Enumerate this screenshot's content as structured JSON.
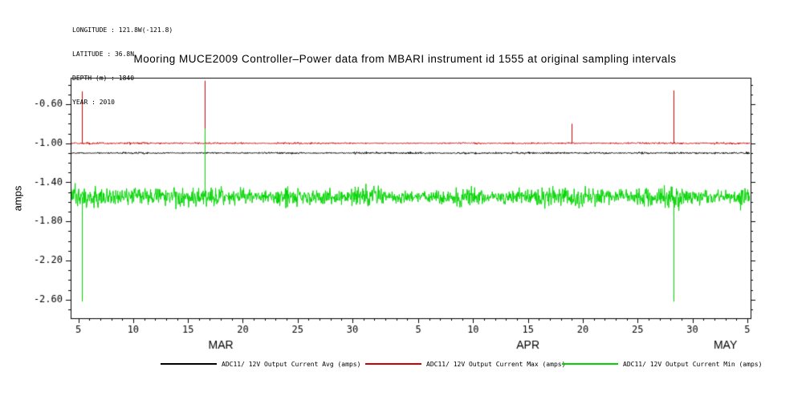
{
  "metadata_block": {
    "lines": [
      "LONGITUDE : 121.8W(-121.8)",
      "LATITUDE : 36.8N",
      "DEPTH (m) : 1840",
      "YEAR : 2010"
    ]
  },
  "title": "Mooring MUCE2009 Controller–Power data from MBARI instrument id 1555 at original sampling intervals",
  "ylabel": "amps",
  "legend": [
    {
      "label": "ADC11/ 12V Output Current Avg (amps)",
      "color": "#000000"
    },
    {
      "label": "ADC11/ 12V Output Current Max (amps)",
      "color": "#cc0000"
    },
    {
      "label": "ADC11/ 12V Output Current Min (amps)",
      "color": "#00d400"
    }
  ],
  "chart_data": {
    "type": "line",
    "title": "Mooring MUCE2009 Controller–Power data from MBARI instrument id 1555 at original sampling intervals",
    "xlabel": "",
    "ylabel": "amps",
    "x_unit": "days from Mar 1, 2010",
    "x_domain": [
      4.3,
      66.3
    ],
    "x_start": 4.35,
    "x_end": 66.3,
    "ylim": [
      -2.79,
      -0.33
    ],
    "grid": false,
    "legend_position": "bottom",
    "y_ticks": [
      -0.6,
      -1.0,
      -1.4,
      -1.8,
      -2.2,
      -2.6
    ],
    "y_tick_labels": [
      "-0.60",
      "-1.00",
      "-1.40",
      "-1.80",
      "-2.20",
      "-2.60"
    ],
    "x_ticks": [
      {
        "day": 5,
        "label": "5"
      },
      {
        "day": 10,
        "label": "10"
      },
      {
        "day": 15,
        "label": "15"
      },
      {
        "day": 20,
        "label": "20"
      },
      {
        "day": 25,
        "label": "25"
      },
      {
        "day": 30,
        "label": "30"
      },
      {
        "day": 36,
        "label": "5"
      },
      {
        "day": 41,
        "label": "10"
      },
      {
        "day": 46,
        "label": "15"
      },
      {
        "day": 51,
        "label": "20"
      },
      {
        "day": 56,
        "label": "25"
      },
      {
        "day": 61,
        "label": "30"
      },
      {
        "day": 66,
        "label": "5"
      }
    ],
    "month_labels": [
      {
        "day": 18,
        "label": "MAR"
      },
      {
        "day": 46,
        "label": "APR"
      },
      {
        "day": 64,
        "label": "MAY"
      }
    ],
    "series": [
      {
        "name": "ADC11/ 12V Output Current Avg (amps)",
        "color": "#000000",
        "baseline": -1.1,
        "noise_amplitude": 0.012,
        "spikes": []
      },
      {
        "name": "ADC11/ 12V Output Current Max (amps)",
        "color": "#cc0000",
        "baseline": -1.0,
        "noise_amplitude": 0.012,
        "spikes": [
          {
            "day": 5.3,
            "value": -0.47
          },
          {
            "day": 16.5,
            "value": -0.36
          },
          {
            "day": 50.0,
            "value": -0.8
          },
          {
            "day": 59.3,
            "value": -0.46
          }
        ]
      },
      {
        "name": "ADC11/ 12V Output Current Min (amps)",
        "color": "#00d400",
        "baseline": -1.55,
        "noise_amplitude": 0.13,
        "spikes": [
          {
            "day": 5.3,
            "value": -2.62
          },
          {
            "day": 16.5,
            "value": -0.85
          },
          {
            "day": 59.3,
            "value": -2.62
          }
        ]
      }
    ]
  }
}
